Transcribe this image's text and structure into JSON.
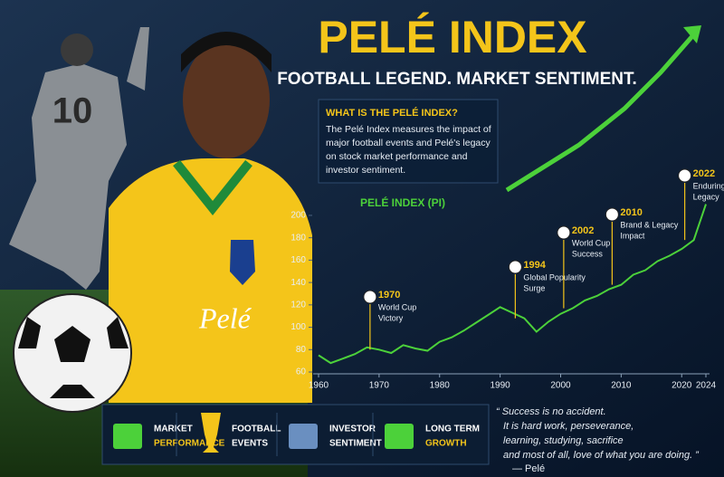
{
  "header": {
    "title": "PELÉ INDEX",
    "subtitle": "FOOTBALL LEGEND. MARKET SENTIMENT."
  },
  "photo": {
    "jersey_number": "10",
    "signature": "Pelé"
  },
  "info": {
    "heading": "WHAT IS THE PELÉ INDEX?",
    "lines": [
      "The Pelé Index measures the impact of",
      "major football events and Pelé's legacy",
      "on stock market performance and",
      "investor sentiment."
    ]
  },
  "chart_data": {
    "type": "line",
    "title": "PELÉ INDEX (PI)",
    "color": "#4cd13a",
    "x": [
      1960,
      1962,
      1964,
      1966,
      1968,
      1970,
      1972,
      1974,
      1976,
      1978,
      1980,
      1982,
      1984,
      1986,
      1988,
      1990,
      1992,
      1994,
      1996,
      1998,
      2000,
      2002,
      2004,
      2006,
      2008,
      2010,
      2012,
      2014,
      2016,
      2018,
      2020,
      2022,
      2024
    ],
    "values": [
      75,
      68,
      72,
      76,
      82,
      80,
      77,
      84,
      81,
      79,
      87,
      91,
      97,
      104,
      111,
      118,
      113,
      108,
      96,
      105,
      112,
      117,
      124,
      128,
      134,
      138,
      147,
      151,
      159,
      164,
      170,
      178,
      210
    ],
    "xlim": [
      1960,
      2024
    ],
    "xticks": [
      1960,
      1970,
      1980,
      1990,
      2000,
      2010,
      2020,
      2024
    ],
    "ylim": [
      60,
      210
    ],
    "yticks": [
      60,
      80,
      100,
      120,
      140,
      160,
      180,
      200
    ],
    "grid": false,
    "annotations": [
      {
        "year": 1970,
        "lines": [
          "World Cup",
          "Victory"
        ]
      },
      {
        "year": 1994,
        "lines": [
          "Global Popularity",
          "Surge"
        ]
      },
      {
        "year": 2002,
        "lines": [
          "World Cup",
          "Success"
        ]
      },
      {
        "year": 2010,
        "lines": [
          "Brand & Legacy",
          "Impact"
        ]
      },
      {
        "year": 2022,
        "lines": [
          "Enduring",
          "Legacy"
        ]
      }
    ]
  },
  "features": [
    {
      "lines": [
        "MARKET",
        "PERFORMANCE"
      ]
    },
    {
      "lines": [
        "FOOTBALL",
        "EVENTS"
      ]
    },
    {
      "lines": [
        "INVESTOR",
        "SENTIMENT"
      ]
    },
    {
      "lines": [
        "LONG TERM",
        "GROWTH"
      ]
    }
  ],
  "quote": {
    "lines": [
      "“ Success is no accident.",
      "It is hard work, perseverance,",
      "learning, studying, sacrifice",
      "and most of all, love of what you are doing. ”"
    ],
    "author": "— Pelé"
  }
}
